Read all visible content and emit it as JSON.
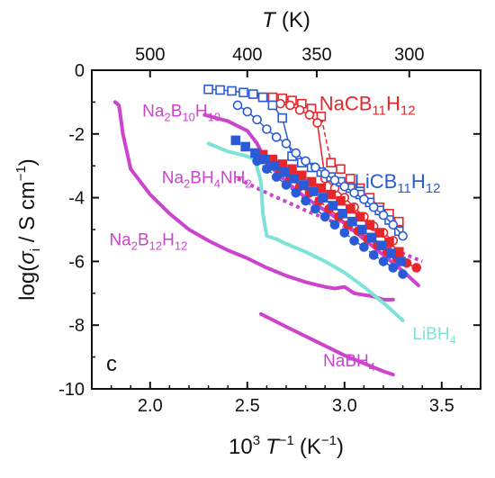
{
  "chart_data": {
    "type": "line",
    "panel_label": "c",
    "xlabel_bottom": {
      "base": "10",
      "sup1": "3",
      "var": "T",
      "sup2": "−1",
      "unit": "(K",
      "unit_sup": "−1",
      "close": ")"
    },
    "xlabel_top": {
      "var": "T",
      "unit": "(K)"
    },
    "ylabel": {
      "text": "log(",
      "sigma": "σ",
      "sub": "i",
      "unit": " / S cm",
      "unit_sup": "−1",
      "close": ")"
    },
    "xlim": [
      1.7,
      3.7
    ],
    "ylim": [
      -10,
      0
    ],
    "x_ticks": [
      "2.0",
      "2.5",
      "3.0",
      "3.5"
    ],
    "x_tick_values": [
      2.0,
      2.5,
      3.0,
      3.5
    ],
    "y_ticks": [
      "0",
      "-2",
      "-4",
      "-6",
      "-8",
      "-10"
    ],
    "y_tick_values": [
      0,
      -2,
      -4,
      -6,
      -8,
      -10
    ],
    "top_ticks": [
      "500",
      "400",
      "350",
      "300"
    ],
    "top_tick_temps": [
      500,
      400,
      350,
      300
    ],
    "colors": {
      "magenta": "#cc44cc",
      "cyan": "#7de3d6",
      "red": "#e8262b",
      "blue": "#2a5bd7"
    },
    "series": [
      {
        "name": "Na2B12H12",
        "kind": "line",
        "color": "magenta",
        "x": [
          1.82,
          1.84,
          1.86,
          1.9,
          2.0,
          2.1,
          2.2,
          2.3,
          2.4,
          2.5,
          2.6,
          2.7,
          2.8,
          2.9,
          2.95,
          3.0,
          3.05,
          3.1,
          3.15,
          3.2,
          3.25
        ],
        "y": [
          -1.0,
          -1.1,
          -2.0,
          -3.1,
          -3.9,
          -4.5,
          -5.0,
          -5.35,
          -5.65,
          -5.9,
          -6.2,
          -6.45,
          -6.65,
          -6.8,
          -6.85,
          -6.8,
          -7.0,
          -7.05,
          -7.1,
          -7.2,
          -7.2
        ]
      },
      {
        "name": "Na2B10H10",
        "kind": "line",
        "color": "magenta",
        "x": [
          2.28,
          2.4,
          2.5,
          2.55,
          2.6,
          2.7,
          2.8,
          2.9,
          3.0,
          3.1,
          3.2,
          3.3,
          3.38
        ],
        "y": [
          -1.4,
          -1.6,
          -1.9,
          -2.3,
          -2.9,
          -3.5,
          -4.0,
          -4.4,
          -4.8,
          -5.3,
          -5.8,
          -6.3,
          -6.75
        ]
      },
      {
        "name": "Na2BH4NH2",
        "kind": "dotted",
        "color": "magenta",
        "x": [
          2.45,
          2.6,
          2.8,
          3.0,
          3.2,
          3.4
        ],
        "y": [
          -3.4,
          -3.85,
          -4.4,
          -4.9,
          -5.5,
          -6.0
        ]
      },
      {
        "name": "LiBH4",
        "kind": "line",
        "color": "cyan",
        "x": [
          2.3,
          2.4,
          2.5,
          2.54,
          2.57,
          2.58,
          2.6,
          2.65,
          2.7,
          2.8,
          2.9,
          3.0,
          3.1,
          3.2,
          3.3
        ],
        "y": [
          -2.3,
          -2.55,
          -2.7,
          -2.8,
          -3.5,
          -4.5,
          -5.2,
          -5.3,
          -5.45,
          -5.7,
          -6.0,
          -6.35,
          -6.8,
          -7.3,
          -7.85
        ]
      },
      {
        "name": "NaBH4",
        "kind": "line",
        "color": "magenta",
        "x": [
          2.57,
          2.7,
          2.8,
          2.9,
          3.0,
          3.1,
          3.2,
          3.25
        ],
        "y": [
          -7.65,
          -8.05,
          -8.35,
          -8.65,
          -8.95,
          -9.2,
          -9.45,
          -9.55
        ]
      },
      {
        "name": "NaCB11H12 (open squares)",
        "kind": "markers",
        "color": "red",
        "marker": "square-open",
        "dashed": true,
        "x": [
          2.58,
          2.63,
          2.68,
          2.73,
          2.78,
          2.83,
          2.88,
          2.93,
          2.98,
          3.03,
          3.08,
          3.13,
          3.18,
          3.23,
          3.28
        ],
        "y": [
          -0.85,
          -0.85,
          -0.88,
          -0.95,
          -1.05,
          -1.2,
          -1.45,
          -2.9,
          -3.1,
          -3.4,
          -3.7,
          -4.0,
          -4.3,
          -4.5,
          -4.75
        ]
      },
      {
        "name": "NaCB11H12 (open circles)",
        "kind": "markers",
        "color": "red",
        "marker": "circle-open",
        "dashed": false,
        "x": [
          2.67,
          2.72,
          2.77,
          2.82,
          2.86,
          2.9,
          2.95,
          3.0,
          3.05,
          3.1,
          3.15,
          3.2,
          3.25
        ],
        "y": [
          -1.05,
          -1.1,
          -1.25,
          -1.4,
          -1.65,
          -3.4,
          -3.7,
          -4.0,
          -4.3,
          -4.6,
          -4.9,
          -5.1,
          -5.35
        ]
      },
      {
        "name": "NaCB11H12 (filled squares)",
        "kind": "markers",
        "color": "red",
        "marker": "square-filled",
        "dashed": true,
        "x": [
          2.58,
          2.63,
          2.68,
          2.73,
          2.78,
          2.83,
          2.88,
          2.93,
          2.98,
          3.03,
          3.08,
          3.13,
          3.18,
          3.23,
          3.28
        ],
        "y": [
          -2.65,
          -2.8,
          -2.95,
          -3.1,
          -3.3,
          -3.5,
          -3.7,
          -3.9,
          -4.1,
          -4.35,
          -4.6,
          -4.85,
          -5.1,
          -5.4,
          -5.7
        ]
      },
      {
        "name": "NaCB11H12 (filled circles)",
        "kind": "markers",
        "color": "red",
        "marker": "circle-filled",
        "dashed": true,
        "x": [
          2.67,
          2.72,
          2.77,
          2.82,
          2.87,
          2.92,
          2.97,
          3.02,
          3.07,
          3.12,
          3.17,
          3.22,
          3.27,
          3.32,
          3.37
        ],
        "y": [
          -3.2,
          -3.4,
          -3.65,
          -3.85,
          -4.1,
          -4.35,
          -4.6,
          -4.85,
          -5.05,
          -5.3,
          -5.5,
          -5.7,
          -5.9,
          -6.05,
          -6.2
        ]
      },
      {
        "name": "LiCB11H12 (open squares)",
        "kind": "markers",
        "color": "blue",
        "marker": "square-open",
        "dashed": false,
        "x": [
          2.3,
          2.36,
          2.42,
          2.48,
          2.53,
          2.58,
          2.63,
          2.68,
          2.73,
          2.78,
          2.83,
          2.88,
          2.93,
          2.98,
          3.03,
          3.08,
          3.13,
          3.18,
          3.23,
          3.28
        ],
        "y": [
          -0.6,
          -0.62,
          -0.65,
          -0.7,
          -0.75,
          -0.85,
          -1.1,
          -1.5,
          -2.7,
          -2.9,
          -3.05,
          -3.2,
          -3.35,
          -3.5,
          -3.7,
          -3.9,
          -4.15,
          -4.4,
          -4.7,
          -5.05
        ]
      },
      {
        "name": "LiCB11H12 (open circles)",
        "kind": "markers",
        "color": "blue",
        "marker": "circle-open",
        "dashed": false,
        "x": [
          2.45,
          2.5,
          2.55,
          2.6,
          2.65,
          2.7,
          2.75,
          2.8,
          2.85,
          2.9,
          2.95,
          3.0,
          3.05,
          3.1,
          3.15,
          3.2,
          3.25,
          3.3
        ],
        "y": [
          -1.1,
          -1.3,
          -1.55,
          -1.85,
          -2.1,
          -2.3,
          -2.6,
          -2.85,
          -3.05,
          -3.25,
          -3.45,
          -3.65,
          -3.85,
          -4.05,
          -4.3,
          -4.55,
          -4.85,
          -5.2
        ]
      },
      {
        "name": "LiCB11H12 (filled squares)",
        "kind": "markers",
        "color": "blue",
        "marker": "square-filled",
        "dashed": true,
        "x": [
          2.44,
          2.49,
          2.54,
          2.59,
          2.64,
          2.69,
          2.74,
          2.79,
          2.84,
          2.89,
          2.94,
          2.99,
          3.04,
          3.09,
          3.14,
          3.19,
          3.24,
          3.29
        ],
        "y": [
          -2.2,
          -2.4,
          -2.6,
          -2.8,
          -3.0,
          -3.2,
          -3.4,
          -3.6,
          -3.8,
          -4.0,
          -4.25,
          -4.5,
          -4.75,
          -5.0,
          -5.25,
          -5.5,
          -5.75,
          -6.0
        ]
      },
      {
        "name": "LiCB11H12 (filled circles)",
        "kind": "markers",
        "color": "blue",
        "marker": "circle-filled",
        "dashed": true,
        "x": [
          2.55,
          2.6,
          2.65,
          2.7,
          2.75,
          2.8,
          2.85,
          2.9,
          2.95,
          3.0,
          3.05,
          3.1,
          3.15,
          3.2,
          3.25,
          3.3
        ],
        "y": [
          -2.85,
          -3.1,
          -3.35,
          -3.6,
          -3.85,
          -4.1,
          -4.35,
          -4.6,
          -4.85,
          -5.1,
          -5.35,
          -5.55,
          -5.8,
          -6.0,
          -6.2,
          -6.4
        ]
      }
    ],
    "labels": [
      {
        "id": "na2b10h10",
        "parts": [
          [
            "Na",
            ""
          ],
          [
            "2",
            "sub"
          ],
          [
            "B",
            ""
          ],
          [
            "10",
            "sub"
          ],
          [
            "H",
            ""
          ],
          [
            "10",
            "sub"
          ]
        ],
        "color": "magenta",
        "x": 1.96,
        "y": -1.45,
        "big": false
      },
      {
        "id": "na2bh4nh2",
        "parts": [
          [
            "Na",
            ""
          ],
          [
            "2",
            "sub"
          ],
          [
            "BH",
            ""
          ],
          [
            "4",
            "sub"
          ],
          [
            "NH",
            ""
          ],
          [
            "2",
            "sub"
          ]
        ],
        "color": "magenta",
        "x": 2.06,
        "y": -3.55,
        "big": false
      },
      {
        "id": "na2b12h12",
        "parts": [
          [
            "Na",
            ""
          ],
          [
            "2",
            "sub"
          ],
          [
            "B",
            ""
          ],
          [
            "12",
            "sub"
          ],
          [
            "H",
            ""
          ],
          [
            "12",
            "sub"
          ]
        ],
        "color": "magenta",
        "x": 1.79,
        "y": -5.5,
        "big": false
      },
      {
        "id": "nacb11h12",
        "parts": [
          [
            "NaCB",
            ""
          ],
          [
            "11",
            "sub"
          ],
          [
            "H",
            ""
          ],
          [
            "12",
            "sub"
          ]
        ],
        "color": "red",
        "x": 2.87,
        "y": -1.25,
        "big": true
      },
      {
        "id": "licb11h12",
        "parts": [
          [
            "LiCB",
            ""
          ],
          [
            "11",
            "sub"
          ],
          [
            "H",
            ""
          ],
          [
            "12",
            "sub"
          ]
        ],
        "color": "blue",
        "x": 3.05,
        "y": -3.7,
        "big": true
      },
      {
        "id": "libh4",
        "parts": [
          [
            "LiBH",
            ""
          ],
          [
            "4",
            "sub"
          ]
        ],
        "color": "cyan",
        "x": 3.35,
        "y": -8.45,
        "big": false
      },
      {
        "id": "nabh4",
        "parts": [
          [
            "NaBH",
            ""
          ],
          [
            "4",
            "sub"
          ]
        ],
        "color": "magenta",
        "x": 2.89,
        "y": -9.3,
        "big": false
      }
    ]
  }
}
